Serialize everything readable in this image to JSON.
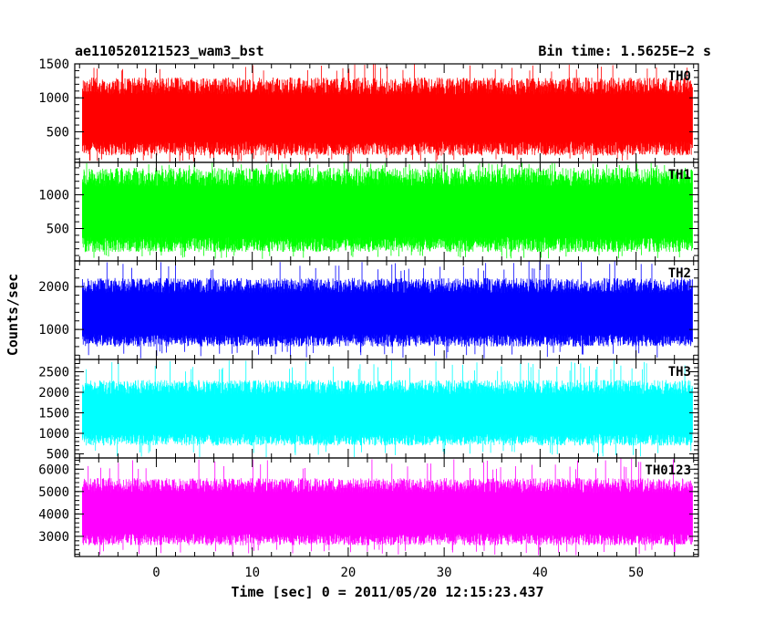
{
  "header": {
    "title": "ae110520121523_wam3_bst",
    "bin_time": "Bin time: 1.5625E−2 s"
  },
  "axes": {
    "ylabel": "Counts/sec",
    "xlabel": "Time [sec] 0 = 2011/05/20 12:15:23.437"
  },
  "chart_data": {
    "type": "line",
    "x_range": [
      -8.5,
      56.5
    ],
    "data_x_range": [
      -7.7,
      55.9
    ],
    "bin_time": 0.015625,
    "x_ticks": [
      0,
      10,
      20,
      30,
      40,
      50
    ],
    "x_tick_labels": [
      "0",
      "10",
      "20",
      "30",
      "40",
      "50"
    ],
    "series": [
      {
        "name": "TH0",
        "color": "#ff0000",
        "ylim": [
          50,
          1500
        ],
        "y_ticks": [
          500,
          1000,
          1500
        ],
        "y_tick_labels": [
          "500",
          "1000",
          "1500"
        ],
        "typical_range": [
          150,
          1300
        ],
        "extreme_range": [
          60,
          1500
        ]
      },
      {
        "name": "TH1",
        "color": "#00ff00",
        "ylim": [
          20,
          1480
        ],
        "y_ticks": [
          500,
          1000
        ],
        "y_tick_labels": [
          "500",
          "1000"
        ],
        "typical_range": [
          150,
          1400
        ],
        "extreme_range": [
          50,
          1480
        ]
      },
      {
        "name": "TH2",
        "color": "#0000ff",
        "ylim": [
          300,
          2600
        ],
        "y_ticks": [
          1000,
          2000
        ],
        "y_tick_labels": [
          "1000",
          "2000"
        ],
        "typical_range": [
          600,
          2200
        ],
        "extreme_range": [
          320,
          2600
        ]
      },
      {
        "name": "TH3",
        "color": "#00ffff",
        "ylim": [
          400,
          2800
        ],
        "y_ticks": [
          500,
          1000,
          1500,
          2000,
          2500
        ],
        "y_tick_labels": [
          "500",
          "1000",
          "1500",
          "2000",
          "2500"
        ],
        "typical_range": [
          700,
          2300
        ],
        "extreme_range": [
          420,
          2800
        ]
      },
      {
        "name": "TH0123",
        "color": "#ff00ff",
        "ylim": [
          2100,
          6500
        ],
        "y_ticks": [
          3000,
          4000,
          5000,
          6000
        ],
        "y_tick_labels": [
          "3000",
          "4000",
          "5000",
          "6000"
        ],
        "typical_range": [
          2600,
          5600
        ],
        "extreme_range": [
          2150,
          6500
        ]
      }
    ]
  }
}
